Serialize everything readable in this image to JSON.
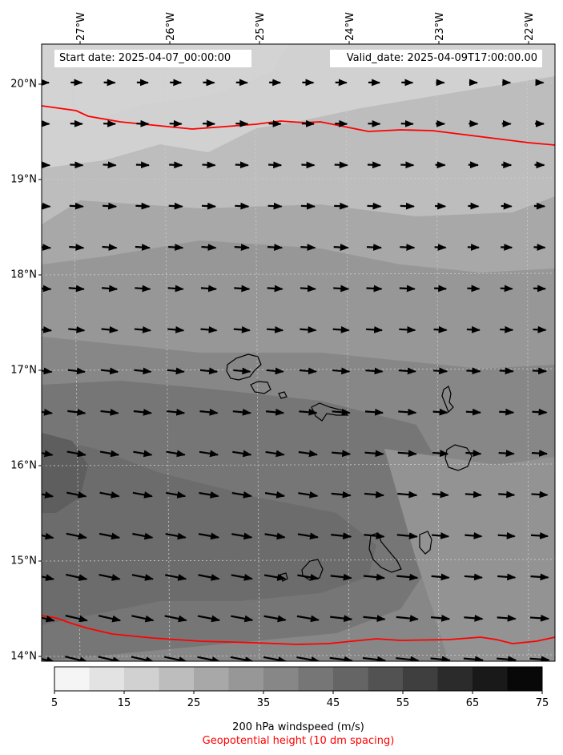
{
  "header": {
    "start_label": "Start date: 2025-04-07_00:00:00",
    "valid_label": "Valid_date: 2025-04-09T17:00:00.00"
  },
  "axes": {
    "lon_labels": [
      "27°W",
      "26°W",
      "25°W",
      "24°W",
      "23°W",
      "22°W"
    ],
    "lat_labels": [
      "20°N",
      "19°N",
      "18°N",
      "17°N",
      "16°N",
      "15°N",
      "14°N"
    ]
  },
  "colorbar": {
    "ticks": [
      "5",
      "15",
      "25",
      "35",
      "45",
      "55",
      "65",
      "75"
    ],
    "colors": [
      "#f5f5f5",
      "#e3e3e3",
      "#d1d1d1",
      "#bdbdbd",
      "#a8a8a8",
      "#979797",
      "#878787",
      "#767676",
      "#656565",
      "#525252",
      "#3f3f3f",
      "#2b2b2b",
      "#191919",
      "#080808"
    ],
    "title": "200 hPa windspeed (m/s)",
    "subtitle": "Geopotential height (10 dm spacing)",
    "subtitle_color": "#ff0000"
  },
  "map": {
    "field": "200 hPa windspeed",
    "contour_color": "#ff0000",
    "islands": [
      "Santo Antão",
      "São Vicente",
      "Santa Luzia",
      "São Nicolau",
      "Sal",
      "Boa Vista",
      "Maio",
      "Santiago",
      "Fogo",
      "Brava"
    ]
  }
}
